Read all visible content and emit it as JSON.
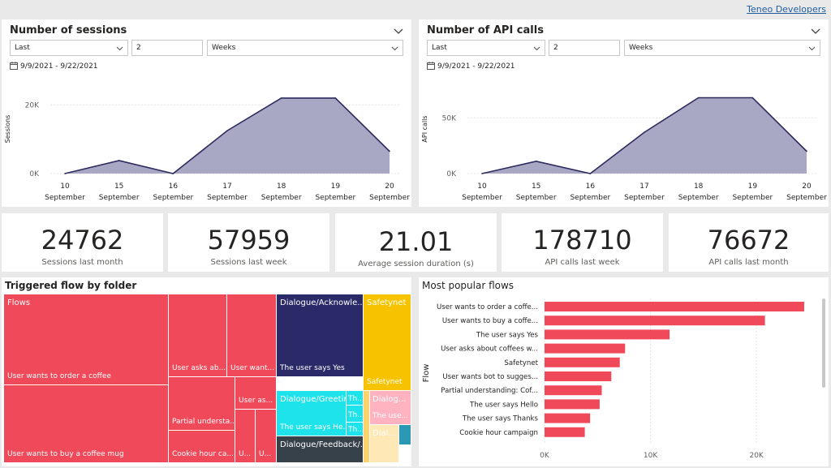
{
  "header": {
    "link": "Teneo Developers"
  },
  "sessions_card": {
    "title": "Number of sessions",
    "period_select": "Last",
    "period_count": "2",
    "period_unit": "Weeks",
    "date_range": "9/9/2021 - 9/22/2021"
  },
  "api_card": {
    "title": "Number of API calls",
    "period_select": "Last",
    "period_count": "2",
    "period_unit": "Weeks",
    "date_range": "9/9/2021 - 9/22/2021"
  },
  "kpis": [
    {
      "value": "24762",
      "label": "Sessions last month"
    },
    {
      "value": "57959",
      "label": "Sessions last week"
    },
    {
      "value": "21.01",
      "label": "Average session duration (s)"
    },
    {
      "value": "178710",
      "label": "API calls last week"
    },
    {
      "value": "76672",
      "label": "API calls last month"
    }
  ],
  "treemap": {
    "title": "Triggered flow by folder",
    "labels": {
      "flows": "Flows",
      "order_coffee": "User wants to order a coffee",
      "buy_mug": "User wants to buy a coffee mug",
      "asks_ab": "User asks ab...",
      "want": "User want...",
      "partial": "Partial understa...",
      "cookie": "Cookie hour ca...",
      "user_as": "User as...",
      "u1": "U...",
      "u2": "U...",
      "dlg_ack": "Dialogue/Acknowle...",
      "says_yes": "The user says Yes",
      "dlg_greet": "Dialogue/Greetings",
      "says_he": "The user says He...",
      "th1": "Th...",
      "th2": "Th...",
      "th3": "Th...",
      "dlg_feedback": "Dialogue/Feedback/...",
      "safetynet_hdr": "Safetynet",
      "safetynet": "Safetynet",
      "dialog_small": "Dialog...",
      "the_use": "The use...",
      "dial_small": "Dial..."
    }
  },
  "chart_data": [
    {
      "type": "area",
      "title": "Number of sessions",
      "xlabel": "",
      "ylabel": "Sessions",
      "categories": [
        "10 September",
        "15 September",
        "16 September",
        "17 September",
        "18 September",
        "19 September",
        "20 September"
      ],
      "x_top": [
        "10",
        "15",
        "16",
        "17",
        "18",
        "19",
        "20"
      ],
      "x_bottom": "September",
      "values": [
        0,
        3800,
        0,
        12500,
        22000,
        22000,
        6500
      ],
      "y_ticks": [
        {
          "v": 0,
          "label": "0K"
        },
        {
          "v": 20000,
          "label": "20K"
        }
      ],
      "ylim": [
        0,
        26000
      ],
      "color": "#a9a8c4",
      "line_color": "#2d2b5e"
    },
    {
      "type": "area",
      "title": "Number of API calls",
      "xlabel": "",
      "ylabel": "API calls",
      "categories": [
        "10 September",
        "15 September",
        "16 September",
        "17 September",
        "18 September",
        "19 September",
        "20 September"
      ],
      "x_top": [
        "10",
        "15",
        "16",
        "17",
        "18",
        "19",
        "20"
      ],
      "x_bottom": "September",
      "values": [
        0,
        11000,
        0,
        37000,
        68000,
        68000,
        20000
      ],
      "y_ticks": [
        {
          "v": 0,
          "label": "0K"
        },
        {
          "v": 50000,
          "label": "50K"
        }
      ],
      "ylim": [
        0,
        80000
      ],
      "color": "#a9a8c4",
      "line_color": "#2d2b5e"
    },
    {
      "type": "bar",
      "orientation": "horizontal",
      "title": "Most popular flows",
      "ylabel": "Flow",
      "xlabel": "",
      "categories": [
        "User wants to order a coffe...",
        "User wants to buy a coffe...",
        "The user says Yes",
        "User asks about coffees w...",
        "Safetynet",
        "User wants bot to sugges...",
        "Partial understanding: Cof...",
        "The user says Hello",
        "The user says Thanks",
        "Cookie hour campaign"
      ],
      "values": [
        24500,
        20800,
        11800,
        7600,
        7100,
        6300,
        5400,
        5200,
        4300,
        3800
      ],
      "x_ticks": [
        {
          "v": 0,
          "label": "0K"
        },
        {
          "v": 10000,
          "label": "10K"
        },
        {
          "v": 20000,
          "label": "20K"
        }
      ],
      "xlim": [
        0,
        25500
      ],
      "color": "#f0495a"
    }
  ],
  "colors": {
    "flows": "#f0495a",
    "dialogue_ack": "#2a2a68",
    "safetynet": "#f7c300",
    "greetings": "#1ee3ea",
    "feedback": "#36414a",
    "dialog_pink": "#ffb3c1",
    "dial_cream": "#fde8b6",
    "teal": "#2b98b4"
  }
}
